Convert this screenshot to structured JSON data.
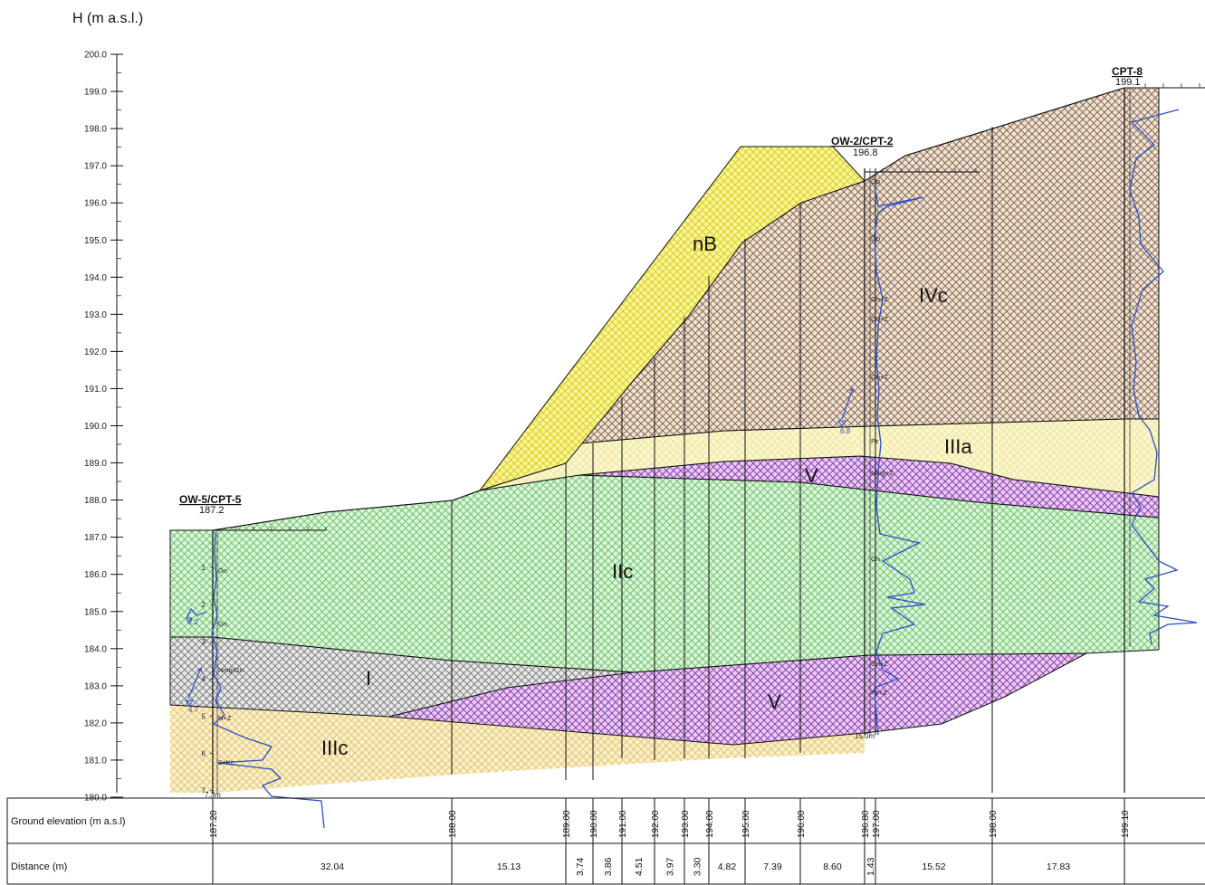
{
  "axis": {
    "title": "H (m a.s.l.)",
    "ticks": [
      "200.0",
      "199.0",
      "198.0",
      "197.0",
      "196.0",
      "195.0",
      "194.0",
      "193.0",
      "192.0",
      "191.0",
      "190.0",
      "189.0",
      "188.0",
      "187.0",
      "186.0",
      "185.0",
      "184.0",
      "183.0",
      "182.0",
      "181.0",
      "180.0"
    ]
  },
  "layers": [
    {
      "label": "nB",
      "color": "#d8d020",
      "pattern": "yellow crosshatch"
    },
    {
      "label": "IVc",
      "color": "#8a6a50",
      "pattern": "brown crosshatch"
    },
    {
      "label": "IIIa",
      "color": "#efe79a",
      "pattern": "pale yellow crosshatch"
    },
    {
      "label": "V",
      "color": "#8e3fb0",
      "pattern": "purple crosshatch"
    },
    {
      "label": "IIc",
      "color": "#6dc86d",
      "pattern": "green crosshatch"
    },
    {
      "label": "I",
      "color": "#808080",
      "pattern": "grey crosshatch"
    },
    {
      "label": "V",
      "color": "#8e3fb0",
      "pattern": "purple crosshatch"
    },
    {
      "label": "IIIc",
      "color": "#e6c86e",
      "pattern": "ochre crosshatch"
    }
  ],
  "boreholes": [
    {
      "name": "OW-5/CPT-5",
      "elevation": "187.2",
      "bottom": "7.3m",
      "water": [
        "2.2",
        "4.7"
      ],
      "tags": [
        "Gn",
        "Gn",
        "Nmg/Gn",
        "N+Z",
        "2+Kc"
      ],
      "depth_ticks": [
        "1",
        "2",
        "3",
        "4",
        "5",
        "6",
        "7"
      ]
    },
    {
      "name": "OW-2/CPT-2",
      "elevation": "196.8",
      "bottom": "15.0m",
      "water": [
        "6.8"
      ],
      "tags": [
        "Gp",
        "Gp",
        "Gn+Z",
        "Gn+Z",
        "Gn+Z",
        "Pz",
        "Nmg+Z",
        "Gn",
        "Gn+Z",
        "Pz+Z"
      ]
    },
    {
      "name": "CPT-8",
      "elevation": "199.1",
      "bottom": ""
    }
  ],
  "table": {
    "rows": [
      {
        "title": "Ground elevation (m a.s.l)"
      },
      {
        "title": "Distance (m)"
      }
    ],
    "elevations": [
      "187.20",
      "188.00",
      "189.00",
      "190.00",
      "191.00",
      "192.00",
      "193.00",
      "194.00",
      "195.00",
      "196.00",
      "196.80",
      "197.00",
      "198.00",
      "199.10"
    ],
    "distances": [
      "32.04",
      "15.13",
      "3.74",
      "3.86",
      "4.51",
      "3.97",
      "3.30",
      "4.82",
      "7.39",
      "8.60",
      "1.43",
      "15.52",
      "17.83"
    ]
  },
  "colors": {
    "cpt_curve": "#2a50c8",
    "line": "#111111"
  }
}
